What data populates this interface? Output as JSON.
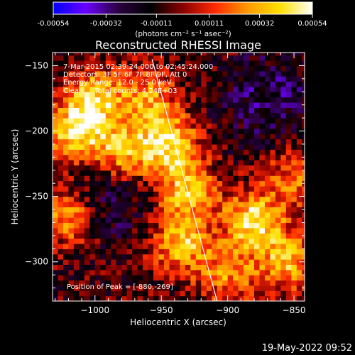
{
  "colorbar": {
    "tick_labels": [
      "-0.00054",
      "-0.00032",
      "-0.00011",
      "0.00011",
      "0.00032",
      "0.00054"
    ],
    "range": [
      -0.00054,
      0.00054
    ],
    "colormap": [
      "#0000ff",
      "#6a00ff",
      "#2b0040",
      "#000000",
      "#8a0000",
      "#ff2a00",
      "#ff9a00",
      "#ffe000",
      "#ffffff"
    ],
    "units_label": "(photons cm⁻² s⁻¹ asec⁻²)"
  },
  "chart_data": {
    "type": "heatmap",
    "title": "Reconstructed RHESSI Image",
    "xlabel": "Heliocentric X (arcsec)",
    "ylabel": "Heliocentric Y (arcsec)",
    "x_ticks": [
      -1000,
      -950,
      -900,
      -850
    ],
    "y_ticks": [
      -150,
      -200,
      -250,
      -300
    ],
    "xlim": [
      -1032,
      -842
    ],
    "ylim": [
      -330,
      -140
    ],
    "x_tick_labels": [
      "−1000",
      "−950",
      "−900",
      "−850"
    ],
    "y_tick_labels": [
      "−150",
      "−200",
      "−250",
      "−300"
    ],
    "info_lines": [
      "7-Mar-2015 02:39:24.000 to 02:45:24.000",
      "Detectors: 3F 5F 6F 7F 8F 9F, Att 0",
      "Energy Range: 12.0 - 25.0 keV",
      "Clean     Total counts: 4.24E+03"
    ],
    "peak_label": "Position of Peak = [-880,-269]",
    "peak_position": [
      -880,
      -269
    ],
    "limb_line": [
      [
        -957,
        -145
      ],
      [
        -908,
        -330
      ]
    ],
    "hot_spots": [
      {
        "x": -1015,
        "y": -200,
        "level": 0.9
      },
      {
        "x": -1000,
        "y": -175,
        "level": 0.8
      },
      {
        "x": -980,
        "y": -215,
        "level": 0.75
      },
      {
        "x": -1020,
        "y": -265,
        "level": 0.7
      },
      {
        "x": -945,
        "y": -210,
        "level": 0.95
      },
      {
        "x": -930,
        "y": -245,
        "level": 0.8
      },
      {
        "x": -935,
        "y": -285,
        "level": 0.85
      },
      {
        "x": -880,
        "y": -269,
        "level": 1.0
      },
      {
        "x": -855,
        "y": -300,
        "level": 0.75
      },
      {
        "x": -900,
        "y": -310,
        "level": 0.6
      },
      {
        "x": -960,
        "y": -175,
        "level": 0.65
      },
      {
        "x": -850,
        "y": -235,
        "level": 0.55
      }
    ]
  },
  "timestamp": "19-May-2022 09:52"
}
